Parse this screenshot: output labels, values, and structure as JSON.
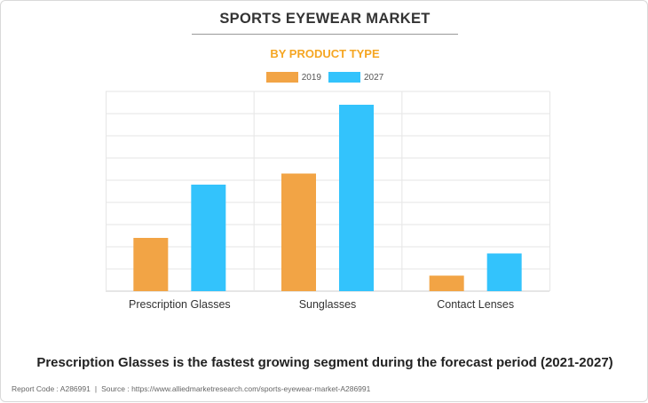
{
  "header": {
    "title": "SPORTS EYEWEAR MARKET",
    "subtitle": "BY PRODUCT TYPE"
  },
  "chart_data": {
    "type": "bar",
    "categories": [
      "Prescription Glasses",
      "Sunglasses",
      "Contact Lenses"
    ],
    "series": [
      {
        "name": "2019",
        "color": "#f2a445",
        "values": [
          2.4,
          5.3,
          0.7
        ]
      },
      {
        "name": "2027",
        "color": "#33c3fc",
        "values": [
          4.8,
          8.4,
          1.7
        ]
      }
    ],
    "ylim": [
      0,
      9
    ],
    "yticks": 9,
    "grid": true,
    "legend_position": "top-center",
    "xlabel": "",
    "ylabel": ""
  },
  "caption": "Prescription Glasses is the fastest growing segment during the forecast period (2021-2027)",
  "footer": {
    "report_code": "Report Code : A286991",
    "separator": "|",
    "source": "Source : https://www.alliedmarketresearch.com/sports-eyewear-market-A286991"
  },
  "colors": {
    "accent": "#f2a445",
    "secondary": "#33c3fc",
    "subtitle": "#f5a623"
  }
}
